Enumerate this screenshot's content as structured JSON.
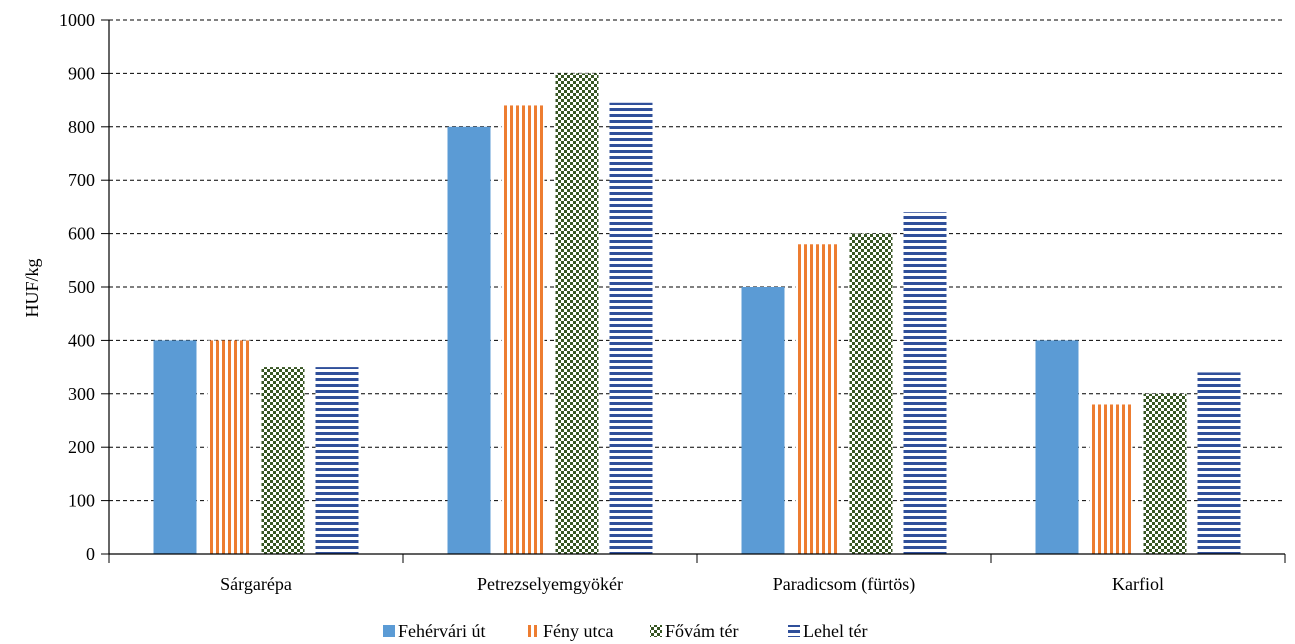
{
  "chart_data": {
    "type": "bar",
    "title": "",
    "xlabel": "",
    "ylabel": "HUF/kg",
    "ylim": [
      0,
      1000
    ],
    "yticks": [
      "0",
      "100",
      "200",
      "300",
      "400",
      "500",
      "600",
      "700",
      "800",
      "900",
      "1000"
    ],
    "categories": [
      "Sárgarépa",
      "Petrezselyemgyökér",
      "Paradicsom (fürtös)",
      "Karfiol"
    ],
    "grid": "horizontal-dashed",
    "legend_position": "bottom",
    "series": [
      {
        "name": "Fehérvári út",
        "color": "#5b9bd5",
        "pattern": "solid",
        "values": [
          400,
          800,
          500,
          400
        ]
      },
      {
        "name": "Fény utca",
        "color": "#ed7d31",
        "pattern": "vertical-stripes",
        "values": [
          400,
          840,
          580,
          280
        ]
      },
      {
        "name": "Fővám tér",
        "color": "#375623",
        "pattern": "checker",
        "values": [
          350,
          900,
          600,
          300
        ]
      },
      {
        "name": "Lehel tér",
        "color": "#2f4f9a",
        "pattern": "horizontal-stripes",
        "values": [
          350,
          845,
          640,
          340
        ]
      }
    ]
  }
}
